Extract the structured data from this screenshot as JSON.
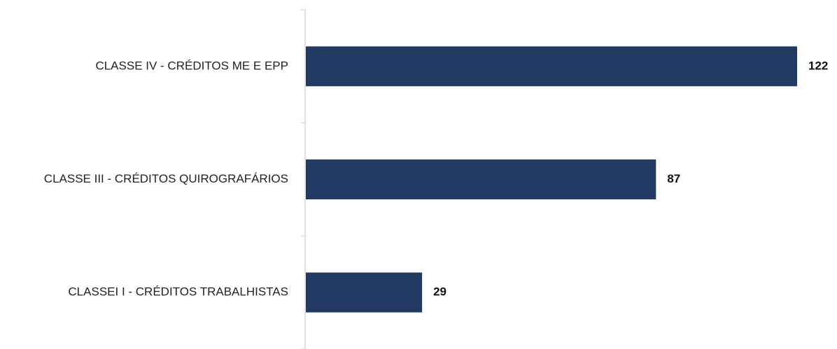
{
  "chart_data": {
    "type": "bar",
    "orientation": "horizontal",
    "categories": [
      "CLASSE IV - CRÉDITOS ME E EPP",
      "CLASSE III - CRÉDITOS QUIROGRAFÁRIOS",
      "CLASSEI I - CRÉDITOS TRABALHISTAS"
    ],
    "values": [
      122,
      87,
      29
    ],
    "data_labels": [
      "122",
      "87",
      "29"
    ],
    "title": "",
    "xlabel": "",
    "ylabel": "",
    "xlim": [
      0,
      122
    ],
    "grid": false,
    "legend": "none",
    "bar_color": "#223963",
    "axis_color": "#d9d9d9"
  }
}
